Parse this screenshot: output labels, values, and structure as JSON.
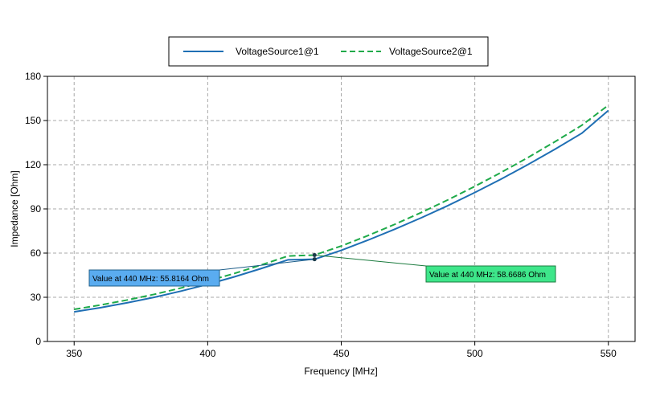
{
  "chart_data": {
    "type": "line",
    "xlabel": "Frequency [MHz]",
    "ylabel": "Impedance [Ohm]",
    "xlim": [
      340,
      560
    ],
    "ylim": [
      0,
      180
    ],
    "xticks": [
      350,
      400,
      450,
      500,
      550
    ],
    "yticks": [
      0,
      30,
      60,
      90,
      120,
      150,
      180
    ],
    "grid": true,
    "legend_position": "top-center",
    "x": [
      350,
      360,
      370,
      380,
      390,
      400,
      410,
      420,
      430,
      440,
      450,
      460,
      470,
      480,
      490,
      500,
      510,
      520,
      530,
      540,
      550
    ],
    "series": [
      {
        "name": "VoltageSource1@1",
        "color": "#1f6fb4",
        "dash": "solid",
        "values": [
          20.1,
          23.0,
          26.3,
          30.0,
          34.2,
          38.8,
          43.9,
          49.5,
          55.4,
          55.8164,
          61.9,
          68.8,
          76.2,
          84.0,
          92.3,
          101.1,
          110.4,
          120.2,
          130.5,
          141.3,
          156.8
        ]
      },
      {
        "name": "VoltageSource2@1",
        "color": "#1faa4a",
        "dash": "dashed",
        "values": [
          21.8,
          24.8,
          28.2,
          32.0,
          36.3,
          41.0,
          46.2,
          51.9,
          58.0,
          58.6686,
          64.8,
          71.9,
          79.5,
          87.6,
          96.2,
          105.3,
          114.9,
          125.0,
          135.6,
          146.7,
          160.4
        ]
      }
    ],
    "annotations": [
      {
        "series": 0,
        "x": 440,
        "y": 55.8164,
        "text": "Value at 440 MHz: 55.8164 Ohm",
        "color": "#5aacf0"
      },
      {
        "series": 1,
        "x": 440,
        "y": 58.6686,
        "text": "Value at 440 MHz: 58.6686 Ohm",
        "color": "#3ee68a"
      }
    ]
  }
}
